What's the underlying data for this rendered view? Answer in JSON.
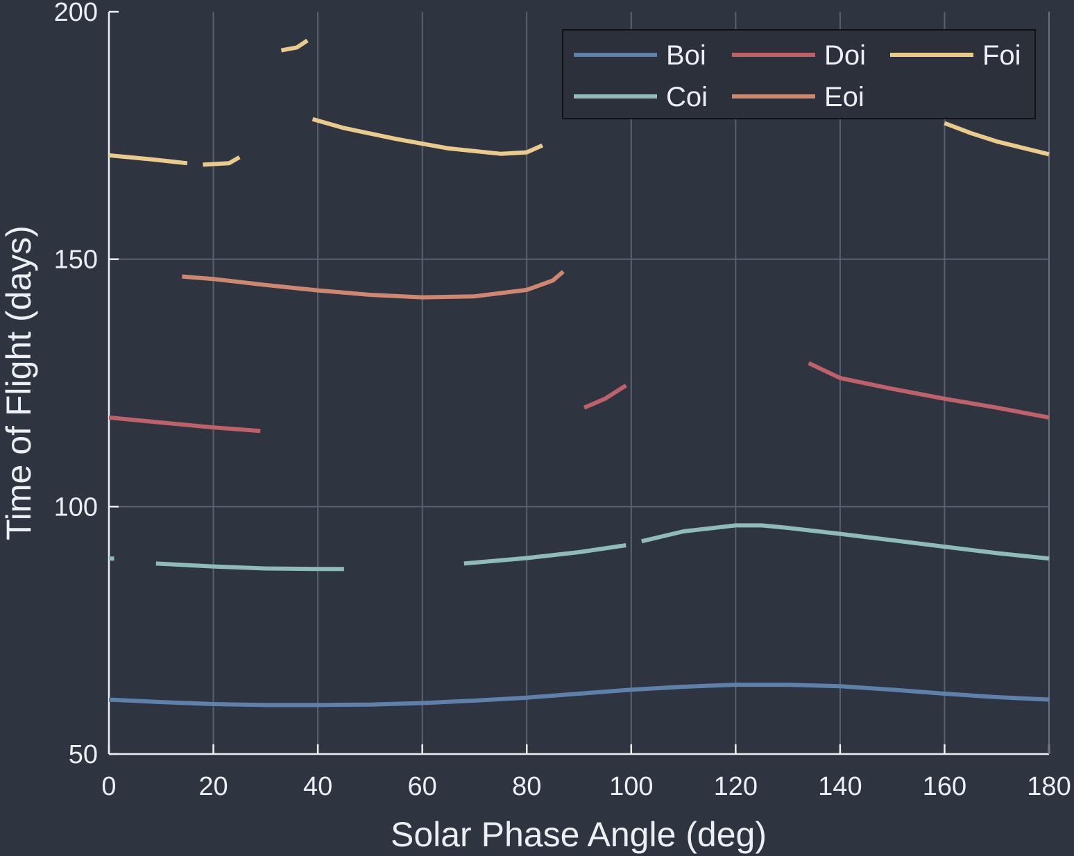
{
  "chart_data": {
    "type": "line",
    "title": "",
    "xlabel": "Solar Phase Angle (deg)",
    "ylabel": "Time of Flight (days)",
    "xlim": [
      0,
      180
    ],
    "ylim": [
      50,
      200
    ],
    "xticks": [
      "0",
      "20",
      "40",
      "60",
      "80",
      "100",
      "120",
      "140",
      "160",
      "180"
    ],
    "yticks": [
      "50",
      "100",
      "150",
      "200"
    ],
    "grid": true,
    "legend_position": "top-right",
    "series": [
      {
        "name": "Boi",
        "color": "#5e81ac",
        "segments": [
          [
            [
              0,
              61.0
            ],
            [
              10,
              60.5
            ],
            [
              20,
              60.1
            ],
            [
              30,
              59.9
            ],
            [
              40,
              59.9
            ],
            [
              50,
              60.0
            ],
            [
              60,
              60.3
            ],
            [
              70,
              60.8
            ],
            [
              80,
              61.4
            ],
            [
              90,
              62.2
            ],
            [
              100,
              63.0
            ],
            [
              110,
              63.6
            ],
            [
              120,
              64.0
            ],
            [
              130,
              64.0
            ],
            [
              140,
              63.7
            ],
            [
              150,
              63.0
            ],
            [
              160,
              62.2
            ],
            [
              170,
              61.5
            ],
            [
              180,
              61.0
            ]
          ]
        ]
      },
      {
        "name": "Coi",
        "color": "#8fbcbb",
        "segments": [
          [
            [
              0,
              89.5
            ],
            [
              1,
              89.5
            ]
          ],
          [
            [
              9,
              88.5
            ],
            [
              20,
              87.9
            ],
            [
              30,
              87.5
            ],
            [
              40,
              87.4
            ],
            [
              45,
              87.4
            ]
          ],
          [
            [
              68,
              88.5
            ],
            [
              80,
              89.6
            ],
            [
              90,
              90.8
            ],
            [
              99,
              92.2
            ]
          ],
          [
            [
              102,
              93.0
            ],
            [
              110,
              95.0
            ],
            [
              120,
              96.2
            ],
            [
              125,
              96.2
            ],
            [
              130,
              95.7
            ],
            [
              140,
              94.5
            ],
            [
              150,
              93.2
            ],
            [
              160,
              91.9
            ],
            [
              170,
              90.6
            ],
            [
              180,
              89.5
            ]
          ]
        ]
      },
      {
        "name": "Doi",
        "color": "#bf616a",
        "segments": [
          [
            [
              0,
              118.0
            ],
            [
              10,
              117.0
            ],
            [
              20,
              116.0
            ],
            [
              29,
              115.3
            ]
          ],
          [
            [
              91,
              120.0
            ],
            [
              95,
              121.8
            ],
            [
              99,
              124.5
            ]
          ],
          [
            [
              134,
              129.0
            ],
            [
              140,
              126.0
            ],
            [
              150,
              123.8
            ],
            [
              160,
              121.8
            ],
            [
              170,
              120.0
            ],
            [
              180,
              118.0
            ]
          ]
        ]
      },
      {
        "name": "Eoi",
        "color": "#d08770",
        "segments": [
          [
            [
              14,
              146.5
            ],
            [
              20,
              146.0
            ],
            [
              30,
              144.8
            ],
            [
              40,
              143.7
            ],
            [
              50,
              142.8
            ],
            [
              60,
              142.3
            ],
            [
              70,
              142.5
            ],
            [
              80,
              143.8
            ],
            [
              85,
              145.7
            ],
            [
              87,
              147.5
            ]
          ]
        ]
      },
      {
        "name": "Foi",
        "color": "#ebcb8b",
        "segments": [
          [
            [
              0,
              171.0
            ],
            [
              8,
              170.2
            ],
            [
              15,
              169.4
            ]
          ],
          [
            [
              18,
              169.1
            ],
            [
              23,
              169.4
            ],
            [
              25,
              170.6
            ]
          ],
          [
            [
              33,
              192.2
            ],
            [
              36,
              192.8
            ],
            [
              38,
              194.2
            ]
          ],
          [
            [
              39,
              178.3
            ],
            [
              45,
              176.5
            ],
            [
              55,
              174.3
            ],
            [
              65,
              172.4
            ],
            [
              75,
              171.3
            ],
            [
              80,
              171.6
            ],
            [
              83,
              173.0
            ]
          ],
          [
            [
              160,
              177.5
            ],
            [
              165,
              175.5
            ],
            [
              170,
              173.8
            ],
            [
              180,
              171.2
            ]
          ]
        ]
      }
    ]
  }
}
